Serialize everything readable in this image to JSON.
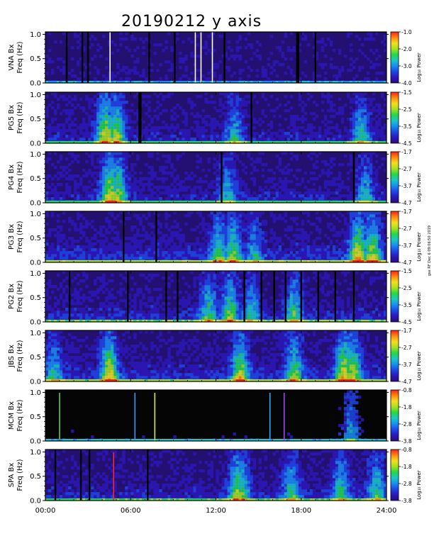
{
  "title": "20190212 y axis",
  "side_stamp": "gse RF Dec 6 09:06:50 2019",
  "colorbar_label": "Log₁₀ Power",
  "colors": {
    "background": "#000000",
    "low": "#2a0c7a",
    "high": "#ff0000"
  },
  "chart_data": [
    {
      "type": "heatmap",
      "station": "VNA",
      "ylabel": "VNA Bx\nFreq (Hz)",
      "ylim": [
        0,
        1.05
      ],
      "yticks": [
        "0.0",
        "0.5",
        "1.0"
      ],
      "cbar_range": [
        -4.0,
        -1.0
      ],
      "cbar_ticks": [
        "-1.0",
        "-2.0",
        "-3.0",
        "-4.0"
      ],
      "activity": 0.05,
      "bursts": [],
      "gaps_hours": [
        1.5,
        2.6,
        3.0,
        7.3,
        9.1,
        12.6,
        17.7,
        17.8,
        19.0
      ],
      "bright_lines_hours": [
        4.55,
        10.55,
        10.95,
        11.75
      ],
      "colored_lines": []
    },
    {
      "type": "heatmap",
      "station": "PG5",
      "ylabel": "PG5 Bx\nFreq (Hz)",
      "ylim": [
        0,
        1.05
      ],
      "yticks": [
        "0.0",
        "0.5",
        "1.0"
      ],
      "cbar_range": [
        -4.5,
        -1.5
      ],
      "cbar_ticks": [
        "-1.5",
        "-2.5",
        "-3.5",
        "-4.5"
      ],
      "activity": 0.35,
      "bursts": [
        [
          4.2,
          0.9
        ],
        [
          5.0,
          0.8
        ],
        [
          13.3,
          0.5
        ],
        [
          22.2,
          0.6
        ]
      ],
      "gaps_hours": [
        6.6,
        6.7,
        14.5
      ],
      "bright_lines_hours": [],
      "colored_lines": []
    },
    {
      "type": "heatmap",
      "station": "PG4",
      "ylabel": "PG4 Bx\nFreq (Hz)",
      "ylim": [
        0,
        1.05
      ],
      "yticks": [
        "0.0",
        "0.5",
        "1.0"
      ],
      "cbar_range": [
        -4.7,
        -1.7
      ],
      "cbar_ticks": [
        "-1.7",
        "-2.7",
        "-3.7",
        "-4.7"
      ],
      "activity": 0.35,
      "bursts": [
        [
          4.5,
          0.9
        ],
        [
          5.1,
          0.8
        ],
        [
          12.8,
          0.5
        ],
        [
          22.5,
          0.5
        ]
      ],
      "gaps_hours": [
        12.4,
        21.7
      ],
      "bright_lines_hours": [],
      "colored_lines": []
    },
    {
      "type": "heatmap",
      "station": "PG3",
      "ylabel": "PG3 Bx\nFreq (Hz)",
      "ylim": [
        0,
        1.05
      ],
      "yticks": [
        "0.0",
        "0.5",
        "1.0"
      ],
      "cbar_range": [
        -4.7,
        -1.7
      ],
      "cbar_ticks": [
        "-1.7",
        "-2.7",
        "-3.7",
        "-4.7"
      ],
      "activity": 0.55,
      "bursts": [
        [
          12.2,
          0.6
        ],
        [
          13.2,
          0.7
        ],
        [
          14.7,
          0.4
        ],
        [
          22.0,
          0.9
        ],
        [
          23.0,
          0.8
        ]
      ],
      "gaps_hours": [
        5.5,
        7.8
      ],
      "bright_lines_hours": [],
      "colored_lines": []
    },
    {
      "type": "heatmap",
      "station": "PG2",
      "ylabel": "PG2 Bx\nFreq (Hz)",
      "ylim": [
        0,
        1.05
      ],
      "yticks": [
        "0.0",
        "0.5",
        "1.0"
      ],
      "cbar_range": [
        -4.5,
        -1.5
      ],
      "cbar_ticks": [
        "-1.5",
        "-2.5",
        "-3.5",
        "-4.5"
      ],
      "activity": 0.45,
      "bursts": [
        [
          11.5,
          0.6
        ],
        [
          13.0,
          0.7
        ],
        [
          14.5,
          0.5
        ],
        [
          17.5,
          0.6
        ]
      ],
      "gaps_hours": [
        1.7,
        5.8,
        8.5,
        9.3,
        14.0,
        15.2,
        16.1,
        16.9,
        18.0,
        19.2,
        20.4,
        21.7
      ],
      "bright_lines_hours": [],
      "colored_lines": []
    },
    {
      "type": "heatmap",
      "station": "JBS",
      "ylabel": "JBS Bx\nFreq (Hz)",
      "ylim": [
        0,
        1.05
      ],
      "yticks": [
        "0.0",
        "0.5",
        "1.0"
      ],
      "cbar_range": [
        -4.7,
        -1.7
      ],
      "cbar_ticks": [
        "-1.7",
        "-2.7",
        "-3.7",
        "-4.7"
      ],
      "activity": 0.5,
      "bursts": [
        [
          0.6,
          0.5
        ],
        [
          4.5,
          0.9
        ],
        [
          13.7,
          0.8
        ],
        [
          17.5,
          0.7
        ],
        [
          21.0,
          0.9
        ],
        [
          21.6,
          0.8
        ]
      ],
      "gaps_hours": [],
      "bright_lines_hours": [],
      "colored_lines": []
    },
    {
      "type": "heatmap",
      "station": "MCM",
      "ylabel": "MCM Bx\nFreq (Hz)",
      "ylim": [
        0,
        1.05
      ],
      "yticks": [
        "0.0",
        "0.5",
        "1.0"
      ],
      "cbar_range": [
        -3.8,
        -0.8
      ],
      "cbar_ticks": [
        "-0.8",
        "-1.8",
        "-2.8",
        "-3.8"
      ],
      "activity": 0.12,
      "bursts": [
        [
          21.5,
          0.5
        ]
      ],
      "gaps_hours": [],
      "bright_lines_hours": [],
      "colored_lines": [
        [
          1.0,
          "#66cc44"
        ],
        [
          6.3,
          "#3399ff"
        ],
        [
          7.7,
          "#ccee33"
        ],
        [
          15.8,
          "#33aaff"
        ],
        [
          16.8,
          "#aa44ff"
        ]
      ]
    },
    {
      "type": "heatmap",
      "station": "SPA",
      "ylabel": "SPA Bx\nFreq (Hz)",
      "ylim": [
        0,
        1.05
      ],
      "yticks": [
        "0.0",
        "0.5",
        "1.0"
      ],
      "cbar_range": [
        -3.8,
        -0.8
      ],
      "cbar_ticks": [
        "-0.8",
        "-1.8",
        "-2.8",
        "-3.8"
      ],
      "activity": 0.4,
      "bursts": [
        [
          13.5,
          0.8
        ],
        [
          13.8,
          0.7
        ],
        [
          17.3,
          0.6
        ],
        [
          20.8,
          0.6
        ],
        [
          23.3,
          0.6
        ]
      ],
      "gaps_hours": [
        0.7,
        2.5,
        3.1,
        7.2
      ],
      "bright_lines_hours": [],
      "colored_lines": [
        [
          4.8,
          "#ff2222"
        ]
      ]
    }
  ],
  "xaxis": {
    "xlim": [
      0,
      24
    ],
    "ticks": [
      {
        "hour": 0,
        "label": "00:00"
      },
      {
        "hour": 6,
        "label": "06:00"
      },
      {
        "hour": 12,
        "label": "12:00"
      },
      {
        "hour": 18,
        "label": "18:00"
      },
      {
        "hour": 24,
        "label": "24:00"
      }
    ]
  }
}
